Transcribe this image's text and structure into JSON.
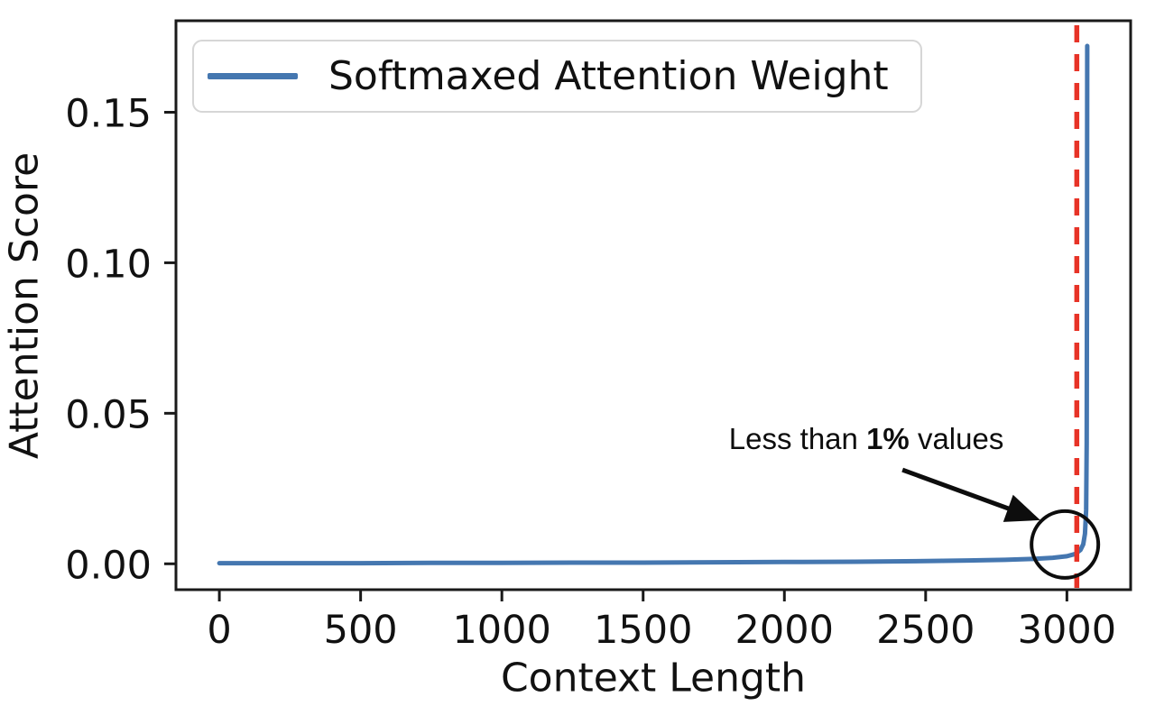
{
  "chart_data": {
    "type": "line",
    "title": "",
    "xlabel": "Context Length",
    "ylabel": "Attention Score",
    "xlim": [
      -153.6,
      3225.6
    ],
    "ylim": [
      -0.0086,
      0.1804
    ],
    "grid": false,
    "background": "#ffffff",
    "axis_color": "#1a1a1a",
    "x_ticks": [
      {
        "value": 0,
        "label": "0"
      },
      {
        "value": 500,
        "label": "500"
      },
      {
        "value": 1000,
        "label": "1000"
      },
      {
        "value": 1500,
        "label": "1500"
      },
      {
        "value": 2000,
        "label": "2000"
      },
      {
        "value": 2500,
        "label": "2500"
      },
      {
        "value": 3000,
        "label": "3000"
      }
    ],
    "y_ticks": [
      {
        "value": 0.0,
        "label": "0.00"
      },
      {
        "value": 0.05,
        "label": "0.05"
      },
      {
        "value": 0.1,
        "label": "0.10"
      },
      {
        "value": 0.15,
        "label": "0.15"
      }
    ],
    "legend": {
      "position": "upper left",
      "entries": [
        {
          "label": "Softmaxed Attention Weight",
          "color": "#4577b0"
        }
      ]
    },
    "series": [
      {
        "name": "Softmaxed Attention Weight",
        "color": "#4577b0",
        "width": 5,
        "x": [
          0,
          250,
          500,
          750,
          1000,
          1250,
          1500,
          1750,
          2000,
          2250,
          2500,
          2650,
          2780,
          2880,
          2950,
          3000,
          3030,
          3048,
          3058,
          3064,
          3068,
          3070,
          3071,
          3072
        ],
        "y": [
          0.0002,
          0.0002,
          0.0002,
          0.0003,
          0.0003,
          0.0004,
          0.0004,
          0.0005,
          0.0006,
          0.0007,
          0.0009,
          0.0011,
          0.0013,
          0.0016,
          0.002,
          0.0025,
          0.0033,
          0.0046,
          0.0065,
          0.01,
          0.018,
          0.04,
          0.09,
          0.172
        ]
      }
    ],
    "vline": {
      "x": 3035,
      "color": "#e73327",
      "style": "dashed",
      "width": 5.5,
      "dash": "19 13"
    },
    "annotations": {
      "label": {
        "prefix": "Less than ",
        "bold": "1%",
        "suffix": " values",
        "x": 2290,
        "y": 0.0414
      },
      "arrow": {
        "x1": 2418,
        "y1": 0.0312,
        "x2": 2906,
        "y2": 0.0145,
        "color": "#0d0d0d"
      },
      "circle": {
        "x": 2993,
        "y": 0.0064,
        "radius_px": 37,
        "color": "#0d0d0d"
      }
    }
  }
}
